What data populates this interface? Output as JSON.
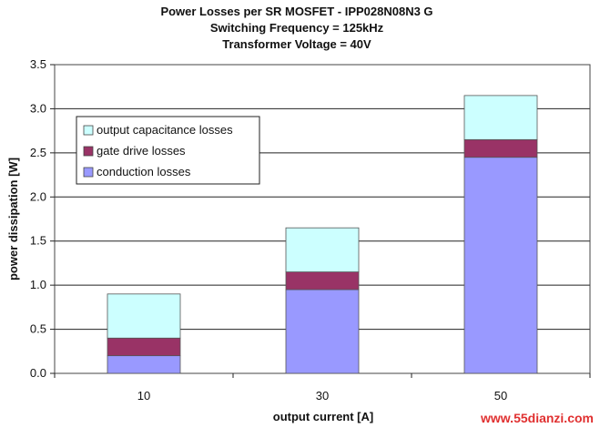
{
  "chart_data": {
    "type": "bar",
    "stacked": true,
    "title_lines": [
      "Power Losses per SR MOSFET - IPP028N08N3 G",
      "Switching Frequency  = 125kHz",
      "Transformer Voltage = 40V"
    ],
    "xlabel": "output current [A]",
    "ylabel": "power dissipation [W]",
    "categories": [
      "10",
      "30",
      "50"
    ],
    "ylim": [
      0,
      3.5
    ],
    "yticks": [
      "0.0",
      "0.5",
      "1.0",
      "1.5",
      "2.0",
      "2.5",
      "3.0",
      "3.5"
    ],
    "grid": true,
    "legend_position": "top-left",
    "series": [
      {
        "name": "conduction losses",
        "values": [
          0.2,
          0.95,
          2.45
        ],
        "color": "#9999ff"
      },
      {
        "name": "gate drive losses",
        "values": [
          0.2,
          0.2,
          0.2
        ],
        "color": "#993366"
      },
      {
        "name": "output capacitance losses",
        "values": [
          0.5,
          0.5,
          0.5
        ],
        "color": "#ccffff"
      }
    ],
    "legend_order": [
      "output capacitance losses",
      "gate drive losses",
      "conduction losses"
    ]
  },
  "watermark": "www.55dianzi.com"
}
